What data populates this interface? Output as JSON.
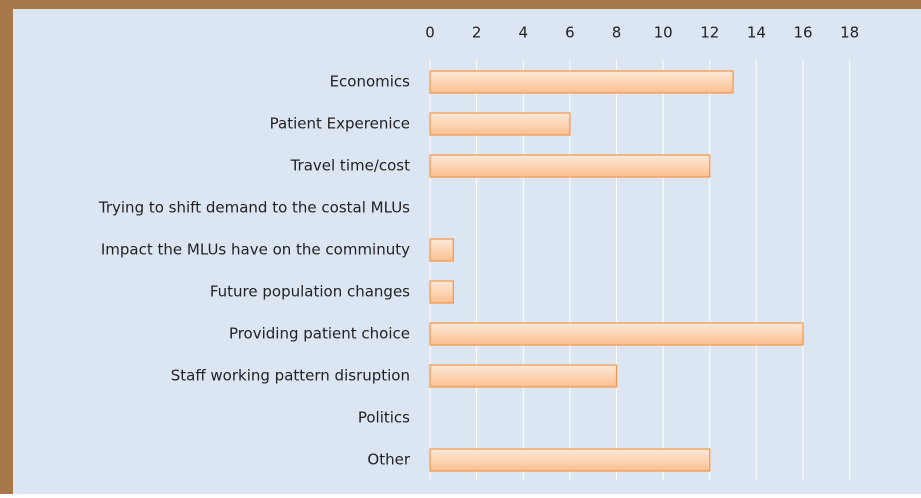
{
  "chart_data": {
    "type": "bar",
    "orientation": "horizontal",
    "categories": [
      "Economics",
      "Patient Experenice",
      "Travel time/cost",
      "Trying to shift demand to the costal MLUs",
      "Impact the MLUs have on the comminuty",
      "Future population changes",
      "Providing patient choice",
      "Staff working pattern disruption",
      "Politics",
      "Other"
    ],
    "values": [
      13,
      6,
      12,
      0,
      1,
      1,
      16,
      8,
      0,
      12
    ],
    "color": "#fcd5b4",
    "edge_color": "#f79646",
    "xlim": [
      0,
      19
    ],
    "xticks": [
      0,
      2,
      4,
      6,
      8,
      10,
      12,
      14,
      16,
      18
    ],
    "grid": true
  }
}
